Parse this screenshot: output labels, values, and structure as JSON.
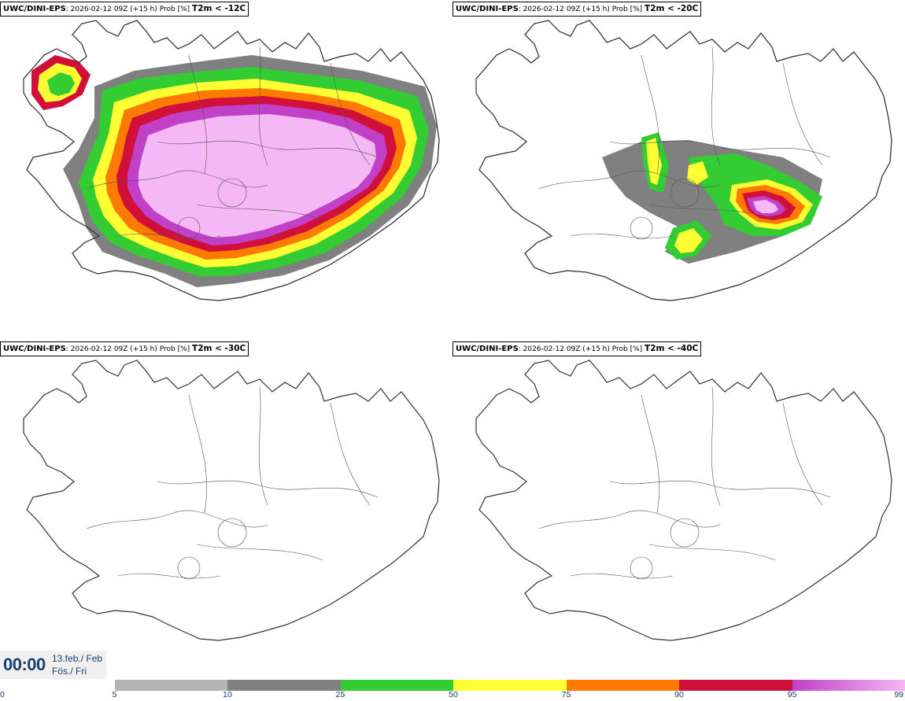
{
  "panels": [
    {
      "model": "UWC/DINI-EPS",
      "run_info": ": 2026-02-12 09Z (+15 h) Prob [%] ",
      "threshold": "T2m < -12C"
    },
    {
      "model": "UWC/DINI-EPS",
      "run_info": ": 2026-02-12 09Z (+15 h) Prob [%] ",
      "threshold": "T2m < -20C"
    },
    {
      "model": "UWC/DINI-EPS",
      "run_info": ": 2026-02-12 09Z (+15 h) Prob [%] ",
      "threshold": "T2m < -30C"
    },
    {
      "model": "UWC/DINI-EPS",
      "run_info": ": 2026-02-12 09Z (+15 h) Prob [%] ",
      "threshold": "T2m < -40C"
    }
  ],
  "valid_time": {
    "clock": "00:00",
    "date_line": "13.feb./ Feb",
    "day_line": "Fös./ Fri"
  },
  "legend": {
    "ticks": [
      "0",
      "5",
      "10",
      "25",
      "50",
      "75",
      "90",
      "95",
      "99"
    ],
    "bins": [
      {
        "from": 5,
        "to": 10,
        "color": "#b4b4b4"
      },
      {
        "from": 10,
        "to": 25,
        "color": "#808080"
      },
      {
        "from": 25,
        "to": 50,
        "color": "#33cc33"
      },
      {
        "from": 50,
        "to": 75,
        "color": "#ffff33"
      },
      {
        "from": 75,
        "to": 90,
        "color": "#ff7a00"
      },
      {
        "from": 90,
        "to": 95,
        "color": "#d0103a"
      },
      {
        "from": 95,
        "to": 99,
        "gradient": [
          "#c040c8",
          "#f4b8f4"
        ]
      }
    ]
  }
}
